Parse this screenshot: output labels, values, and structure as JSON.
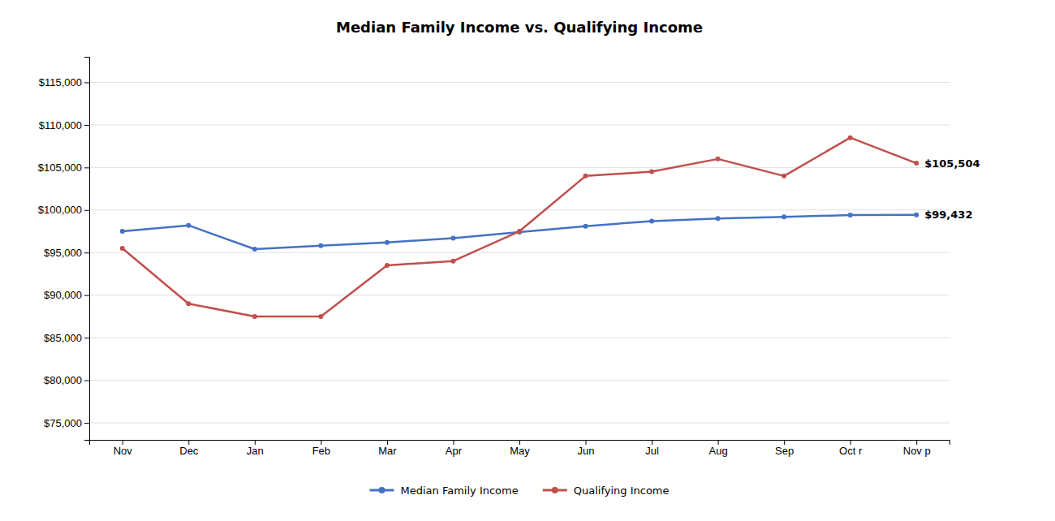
{
  "chart_data": {
    "type": "line",
    "title": "Median Family Income vs. Qualifying Income",
    "categories": [
      "Nov",
      "Dec",
      "Jan",
      "Feb",
      "Mar",
      "Apr",
      "May",
      "Jun",
      "Jul",
      "Aug",
      "Sep",
      "Oct r",
      "Nov p"
    ],
    "series": [
      {
        "name": "Median Family Income",
        "color": "#4472C4",
        "marker": "circle",
        "values": [
          97500,
          98200,
          95400,
          95800,
          96200,
          96700,
          97400,
          98100,
          98700,
          99000,
          99200,
          99400,
          99432
        ]
      },
      {
        "name": "Qualifying Income",
        "color": "#C0504D",
        "marker": "circle",
        "values": [
          95500,
          89000,
          87500,
          87500,
          93500,
          94000,
          97500,
          104000,
          104500,
          106000,
          104000,
          108500,
          105504
        ]
      }
    ],
    "annotations": [
      {
        "text": "$105,504",
        "x": "Nov p",
        "y": 105504
      },
      {
        "text": "$99,432",
        "x": "Nov p",
        "y": 99432
      }
    ],
    "ylim": [
      73000,
      118000
    ],
    "yticks": [
      {
        "value": 75000,
        "label": "$75,000"
      },
      {
        "value": 80000,
        "label": "$80,000"
      },
      {
        "value": 85000,
        "label": "$85,000"
      },
      {
        "value": 90000,
        "label": "$90,000"
      },
      {
        "value": 95000,
        "label": "$95,000"
      },
      {
        "value": 100000,
        "label": "$100,000"
      },
      {
        "value": 105000,
        "label": "$105,000"
      },
      {
        "value": 110000,
        "label": "$110,000"
      },
      {
        "value": 115000,
        "label": "$115,000"
      }
    ],
    "grid": true,
    "legend": "bottom"
  }
}
